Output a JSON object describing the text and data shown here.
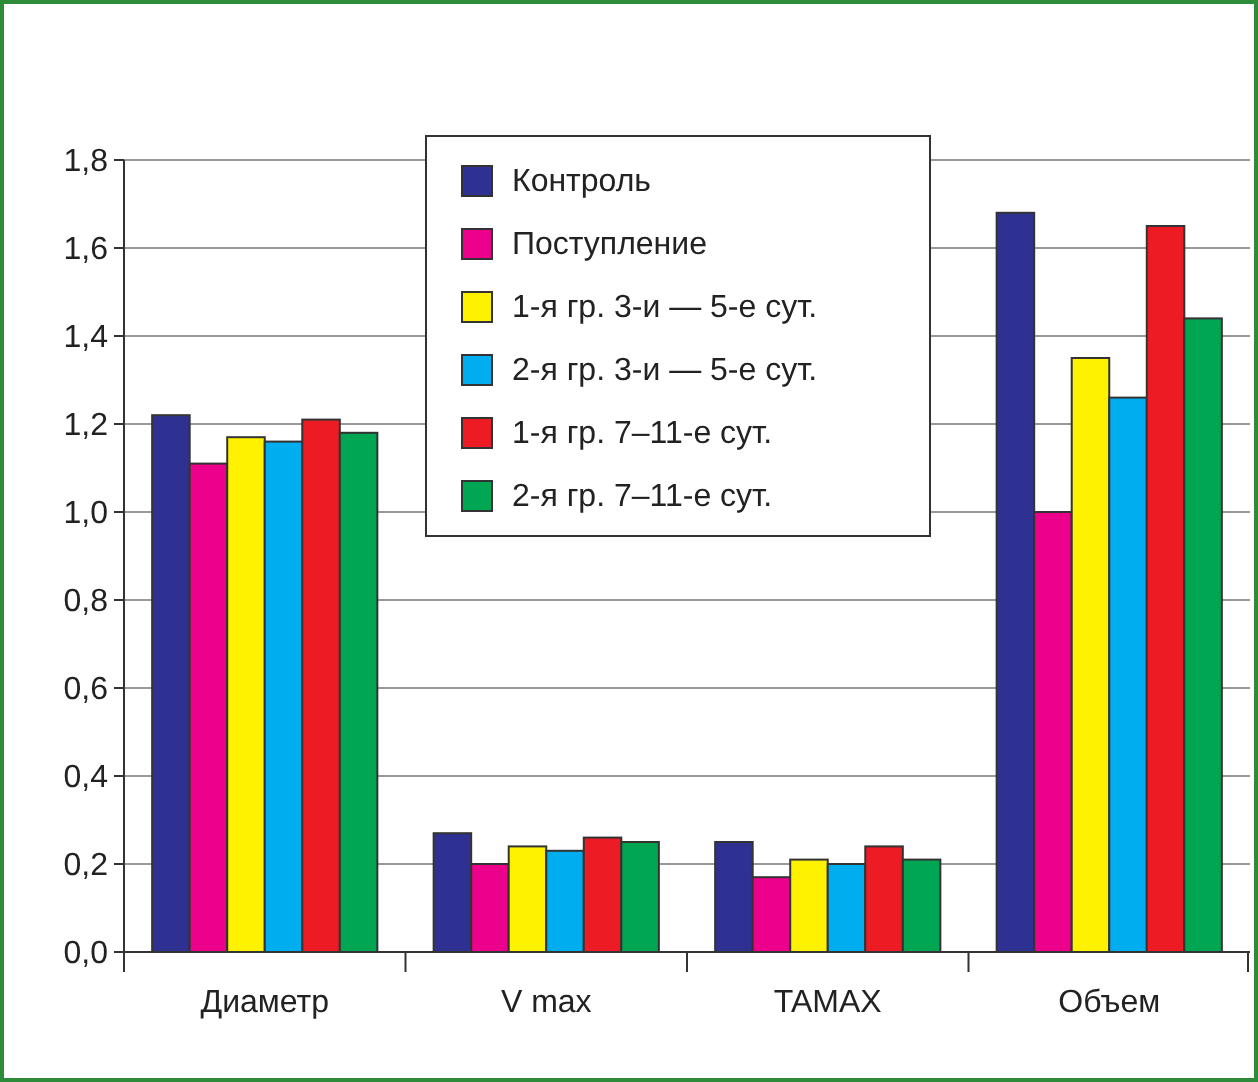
{
  "chart_data": {
    "type": "bar",
    "categories": [
      "Диаметр",
      "V max",
      "TAMAX",
      "Объем"
    ],
    "series": [
      {
        "name": "Контроль",
        "color": "#2e3192",
        "values": [
          1.22,
          0.27,
          0.25,
          1.68
        ]
      },
      {
        "name": "Поступление",
        "color": "#ec008c",
        "values": [
          1.11,
          0.2,
          0.17,
          1.0
        ]
      },
      {
        "name": "1-я гр. 3-и — 5-е сут.",
        "color": "#fff200",
        "values": [
          1.17,
          0.24,
          0.21,
          1.35
        ]
      },
      {
        "name": "2-я гр. 3-и — 5-е сут.",
        "color": "#00aeef",
        "values": [
          1.16,
          0.23,
          0.2,
          1.26
        ]
      },
      {
        "name": "1-я гр. 7–11-е сут.",
        "color": "#ed1c24",
        "values": [
          1.21,
          0.26,
          0.24,
          1.65
        ]
      },
      {
        "name": "2-я гр. 7–11-е сут.",
        "color": "#00a651",
        "values": [
          1.18,
          0.25,
          0.21,
          1.44
        ]
      }
    ],
    "ylim": [
      0,
      1.8
    ],
    "yticks": [
      {
        "value": 0,
        "label": "0,0"
      },
      {
        "value": 0.2,
        "label": "0,2"
      },
      {
        "value": 0.4,
        "label": "0,4"
      },
      {
        "value": 0.6,
        "label": "0,6"
      },
      {
        "value": 0.8,
        "label": "0,8"
      },
      {
        "value": 1,
        "label": "1,0"
      },
      {
        "value": 1.2,
        "label": "1,2"
      },
      {
        "value": 1.4,
        "label": "1,4"
      },
      {
        "value": 1.6,
        "label": "1,6"
      },
      {
        "value": 1.8,
        "label": "1,8"
      }
    ],
    "grid": "y",
    "legend": "top"
  }
}
